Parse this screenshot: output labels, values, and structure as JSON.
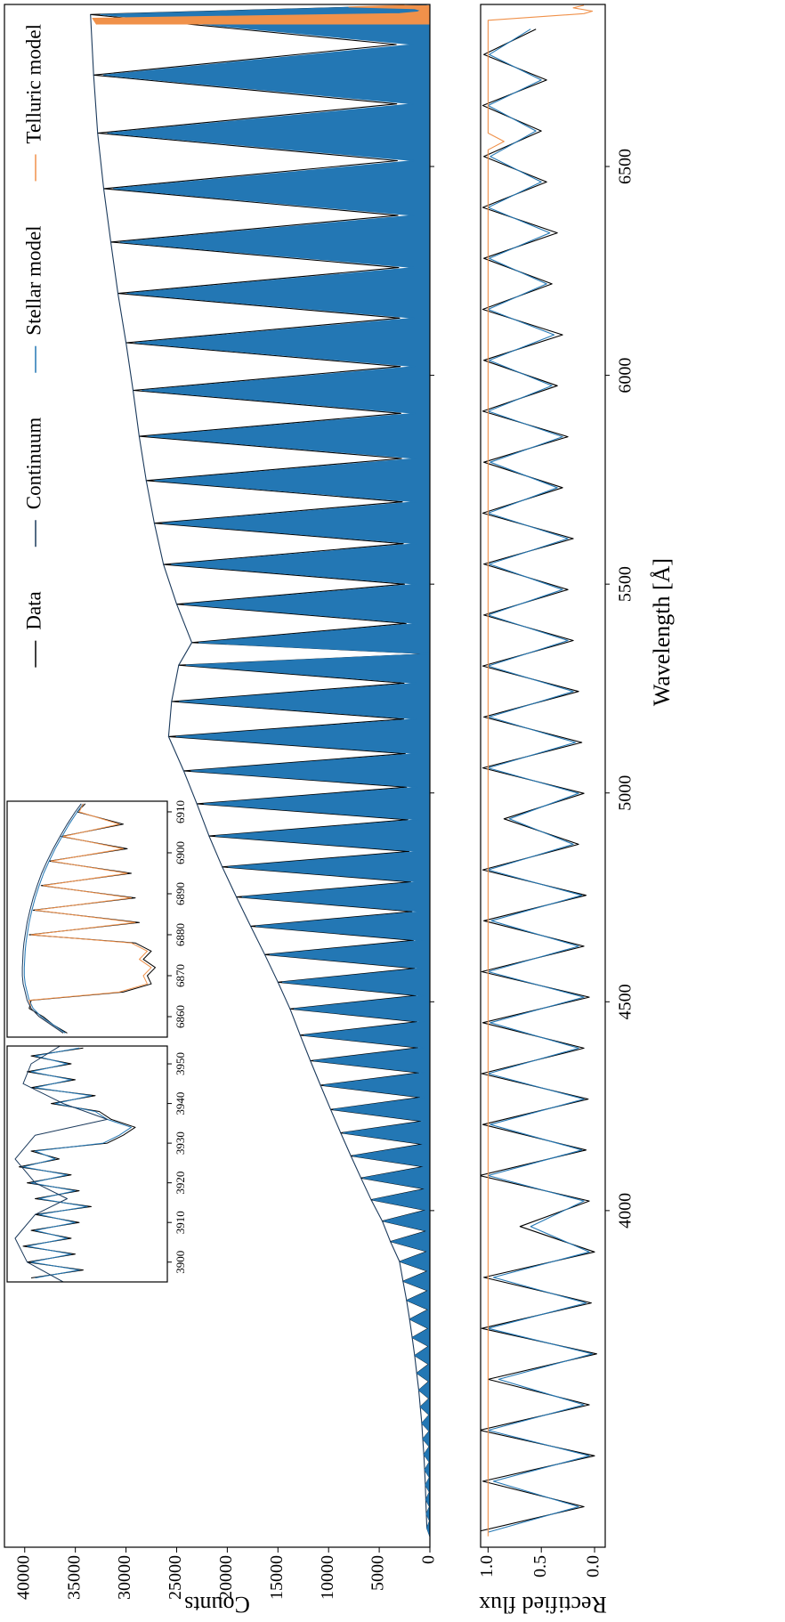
{
  "chart_data": [
    {
      "type": "line",
      "ylabel": "Counts",
      "xlim": [
        3194,
        6888
      ],
      "ylim": [
        0,
        42000
      ],
      "yticks": [
        0,
        5000,
        10000,
        15000,
        20000,
        25000,
        30000,
        35000,
        40000
      ],
      "legend": "upper right",
      "x": [
        3220,
        3240,
        3257,
        3274,
        3291,
        3308,
        3326,
        3343,
        3361,
        3379,
        3398,
        3416,
        3435,
        3453,
        3472,
        3491,
        3511,
        3530,
        3550,
        3570,
        3591,
        3611,
        3632,
        3653,
        3675,
        3696,
        3718,
        3740,
        3763,
        3785,
        3808,
        3831,
        3855,
        3878,
        3902,
        3926,
        3951,
        3975,
        4001,
        4026,
        4052,
        4078,
        4105,
        4131,
        4159,
        4186,
        4214,
        4242,
        4271,
        4300,
        4330,
        4359,
        4390,
        4420,
        4452,
        4483,
        4515,
        4547,
        4580,
        4613,
        4647,
        4681,
        4716,
        4751,
        4787,
        4823,
        4860,
        4897,
        4936,
        4974,
        5014,
        5053,
        5094,
        5135,
        5177,
        5219,
        5263,
        5306,
        5333,
        5360,
        5406,
        5452,
        5500,
        5547,
        5597,
        5646,
        5697,
        5748,
        5801,
        5854,
        5909,
        5964,
        6021,
        6078,
        6137,
        6196,
        6258,
        6319,
        6383,
        6447,
        6514,
        6580,
        6650,
        6719,
        6792,
        6864,
        6886
      ],
      "series": [
        {
          "name": "Data",
          "color": "#000000",
          "values": [
            0,
            300,
            30,
            350,
            35,
            400,
            40,
            450,
            45,
            520,
            52,
            600,
            60,
            700,
            70,
            800,
            80,
            950,
            95,
            1100,
            110,
            1300,
            130,
            1500,
            150,
            1750,
            175,
            2000,
            200,
            2300,
            230,
            2650,
            265,
            3000,
            300,
            3900,
            390,
            4700,
            470,
            5800,
            580,
            6800,
            680,
            7800,
            780,
            8800,
            880,
            9800,
            980,
            10800,
            1080,
            11800,
            1180,
            12800,
            1280,
            13800,
            1380,
            15000,
            1500,
            16300,
            1630,
            17700,
            1770,
            19100,
            1910,
            20500,
            2050,
            21800,
            2180,
            23000,
            2300,
            24300,
            2430,
            25800,
            2580,
            25500,
            2550,
            24800,
            0,
            23500,
            2350,
            25000,
            2500,
            26300,
            2630,
            27200,
            2720,
            28000,
            2800,
            28700,
            2870,
            29300,
            2930,
            30000,
            3000,
            30800,
            3080,
            31500,
            3150,
            32200,
            3220,
            32800,
            3280,
            33200,
            3320,
            33500,
            500
          ]
        },
        {
          "name": "Continuum",
          "color": "#1b3a5c",
          "x": [
            3240,
            3274,
            3308,
            3343,
            3379,
            3416,
            3453,
            3491,
            3530,
            3570,
            3611,
            3653,
            3696,
            3740,
            3785,
            3831,
            3878,
            3926,
            3975,
            4026,
            4078,
            4131,
            4186,
            4242,
            4300,
            4359,
            4420,
            4483,
            4547,
            4613,
            4681,
            4751,
            4823,
            4897,
            4974,
            5053,
            5135,
            5219,
            5306,
            5360,
            5452,
            5547,
            5646,
            5748,
            5854,
            5964,
            6078,
            6196,
            6319,
            6447,
            6580,
            6719,
            6864
          ],
          "values": [
            300,
            350,
            400,
            450,
            520,
            600,
            700,
            800,
            950,
            1100,
            1300,
            1500,
            1750,
            2000,
            2300,
            2650,
            3000,
            3900,
            4700,
            5800,
            6800,
            7800,
            8800,
            9800,
            10800,
            11800,
            12800,
            13800,
            15000,
            16300,
            17700,
            19100,
            20500,
            21800,
            23000,
            24300,
            25800,
            25500,
            24800,
            23500,
            25000,
            26300,
            27200,
            28000,
            28700,
            29300,
            30000,
            30800,
            31500,
            32200,
            32800,
            33200,
            33500
          ]
        },
        {
          "name": "Stellar model",
          "color": "#2377b4",
          "fill": true,
          "values": [
            0,
            290,
            15,
            340,
            18,
            390,
            20,
            440,
            23,
            500,
            26,
            580,
            30,
            680,
            35,
            780,
            40,
            920,
            48,
            1070,
            55,
            1260,
            65,
            1460,
            75,
            1700,
            88,
            1940,
            100,
            2230,
            115,
            2570,
            133,
            2910,
            150,
            3780,
            195,
            4560,
            235,
            5630,
            290,
            6600,
            340,
            7570,
            390,
            8540,
            440,
            9510,
            490,
            10480,
            540,
            11450,
            590,
            12420,
            640,
            13390,
            690,
            14550,
            750,
            15810,
            815,
            17170,
            885,
            18530,
            955,
            19890,
            1025,
            21150,
            1090,
            22310,
            1150,
            23570,
            1215,
            25030,
            1290,
            24740,
            1275,
            24060,
            0,
            22800,
            1175,
            24250,
            1250,
            25510,
            1315,
            26380,
            1360,
            27160,
            1400,
            27840,
            1435,
            28420,
            1465,
            29100,
            1500,
            29880,
            1540,
            30560,
            1575,
            31230,
            1610,
            31820,
            1640,
            32200,
            1660,
            32500,
            300
          ]
        },
        {
          "name": "Telluric model",
          "color": "#f0914a",
          "fill": true,
          "x": [
            6840,
            6855,
            6866,
            6870,
            6874,
            6878,
            6882,
            6886
          ],
          "values": [
            32900,
            33300,
            3000,
            1200,
            900,
            1500,
            8000,
            2500
          ]
        }
      ]
    },
    {
      "type": "line",
      "xlabel": "Wavelength [Å]",
      "ylabel": "Rectified flux",
      "xlim": [
        3194,
        6888
      ],
      "ylim": [
        -0.1,
        1.07
      ],
      "xticks": [
        4000,
        4500,
        5000,
        5500,
        6000,
        6500
      ],
      "yticks": [
        {
          "value": 0,
          "label": "0.0"
        },
        {
          "value": 0.5,
          "label": "0.5"
        },
        {
          "value": 1,
          "label": "1.0"
        }
      ],
      "x": [
        3230,
        3291,
        3352,
        3413,
        3474,
        3535,
        3596,
        3657,
        3718,
        3779,
        3840,
        3901,
        3962,
        4023,
        4084,
        4145,
        4206,
        4267,
        4328,
        4389,
        4450,
        4511,
        4572,
        4633,
        4694,
        4755,
        4816,
        4877,
        4938,
        4999,
        5060,
        5121,
        5182,
        5243,
        5304,
        5365,
        5426,
        5487,
        5548,
        5609,
        5670,
        5731,
        5792,
        5853,
        5914,
        5975,
        6036,
        6097,
        6158,
        6219,
        6280,
        6341,
        6402,
        6463,
        6524,
        6585,
        6646,
        6707,
        6768,
        6829
      ],
      "series": [
        {
          "color": "#000000",
          "values": [
            1.12,
            0.1,
            1.05,
            0.0,
            1.08,
            0.05,
            1.0,
            -0.02,
            1.06,
            0.03,
            1.04,
            0.0,
            0.7,
            0.05,
            1.08,
            0.08,
            1.05,
            0.06,
            1.06,
            0.1,
            1.05,
            0.05,
            1.06,
            0.1,
            1.04,
            0.08,
            1.05,
            0.15,
            0.85,
            0.1,
            1.05,
            0.12,
            1.04,
            0.15,
            1.05,
            0.2,
            1.04,
            0.25,
            1.04,
            0.2,
            1.05,
            0.3,
            1.04,
            0.25,
            1.05,
            0.35,
            1.04,
            0.3,
            1.05,
            0.4,
            1.04,
            0.35,
            1.05,
            0.45,
            1.04,
            0.5,
            1.05,
            0.45,
            1.04,
            0.55
          ]
        },
        {
          "color": "#2377b4",
          "values": [
            1.0,
            0.15,
            0.95,
            0.05,
            1.0,
            0.1,
            0.9,
            0.02,
            1.0,
            0.08,
            0.95,
            0.05,
            0.6,
            0.1,
            1.0,
            0.12,
            0.98,
            0.1,
            1.0,
            0.15,
            0.98,
            0.1,
            1.0,
            0.15,
            0.97,
            0.12,
            1.0,
            0.2,
            0.8,
            0.15,
            1.0,
            0.18,
            0.99,
            0.2,
            1.0,
            0.25,
            1.0,
            0.3,
            0.99,
            0.25,
            1.0,
            0.35,
            0.98,
            0.3,
            1.0,
            0.4,
            0.99,
            0.38,
            1.0,
            0.45,
            0.99,
            0.42,
            1.0,
            0.5,
            0.98,
            0.55,
            1.0,
            0.5,
            0.99,
            0.6
          ]
        },
        {
          "color": "#f0914a",
          "x": [
            3220,
            6540,
            6560,
            6580,
            6850,
            6866,
            6872,
            6880,
            6886
          ],
          "values": [
            1,
            1,
            0.85,
            1,
            1,
            0.1,
            0.02,
            0.2,
            0.1
          ]
        }
      ]
    },
    {
      "type": "line",
      "xlim": [
        3895,
        3954.5
      ],
      "ylim": [
        0,
        4000
      ],
      "xticks": [
        3900,
        3910,
        3920,
        3930,
        3940,
        3950
      ],
      "x": [
        3896,
        3898,
        3900,
        3902,
        3904,
        3906,
        3908,
        3910,
        3912,
        3914,
        3916,
        3918,
        3920,
        3922,
        3924,
        3926,
        3928,
        3930,
        3932,
        3934,
        3936,
        3938,
        3940,
        3942,
        3944,
        3946,
        3948,
        3950,
        3952,
        3954
      ],
      "series": [
        {
          "color": "#000000",
          "values": [
            3400,
            2100,
            3500,
            2300,
            3600,
            2400,
            3400,
            2200,
            3300,
            1900,
            3300,
            2200,
            3500,
            2400,
            3700,
            2700,
            3400,
            1500,
            1100,
            800,
            1400,
            1700,
            2900,
            1800,
            3400,
            2300,
            3500,
            2400,
            3400,
            2100
          ]
        },
        {
          "color": "#2377b4",
          "values": [
            3300,
            2200,
            3400,
            2400,
            3500,
            2500,
            3300,
            2300,
            3200,
            2000,
            3200,
            2300,
            3400,
            2500,
            3600,
            2800,
            3300,
            1600,
            1200,
            900,
            1500,
            1800,
            2800,
            1900,
            3300,
            2400,
            3400,
            2500,
            3300,
            2200
          ]
        },
        {
          "color": "#1b3a5c",
          "x": [
            3895,
            3900,
            3906,
            3912,
            3916,
            3920,
            3926,
            3932,
            3936,
            3940,
            3945,
            3950,
            3955
          ],
          "values": [
            2600,
            3500,
            3800,
            3300,
            2500,
            3300,
            3800,
            3300,
            1500,
            2600,
            3600,
            3400,
            2600
          ]
        }
      ]
    },
    {
      "type": "line",
      "xlim": [
        6855,
        6912.6
      ],
      "ylim": [
        0,
        4000
      ],
      "xticks": [
        6860,
        6870,
        6880,
        6890,
        6900,
        6910
      ],
      "x": [
        6856,
        6858,
        6860,
        6862,
        6864,
        6866,
        6868,
        6870,
        6872,
        6874,
        6876,
        6878,
        6880,
        6883,
        6886,
        6889,
        6892,
        6895,
        6898,
        6901,
        6904,
        6907,
        6910,
        6912
      ],
      "series": [
        {
          "color": "#000000",
          "values": [
            2500,
            2850,
            3100,
            3450,
            3400,
            1100,
            400,
            500,
            300,
            600,
            400,
            800,
            3450,
            700,
            3350,
            800,
            3150,
            900,
            2950,
            1000,
            2650,
            1100,
            2250,
            2050
          ]
        },
        {
          "color": "#2377b4",
          "values": [
            2550,
            2850,
            3150,
            3350,
            3450,
            3500,
            3550,
            3570,
            3570,
            3560,
            3550,
            3530,
            3500,
            3450,
            3380,
            3300,
            3200,
            3090,
            2950,
            2800,
            2630,
            2450,
            2250,
            2100
          ]
        },
        {
          "color": "#f0914a",
          "values": [
            2600,
            2900,
            3200,
            3400,
            3450,
            1200,
            500,
            600,
            400,
            700,
            500,
            900,
            3400,
            800,
            3300,
            900,
            3100,
            1000,
            2900,
            1100,
            2600,
            1200,
            2200,
            2100
          ]
        },
        {
          "color": "#1b3a5c",
          "values": [
            2600,
            2900,
            3200,
            3400,
            3500,
            3550,
            3600,
            3620,
            3620,
            3610,
            3600,
            3580,
            3550,
            3500,
            3430,
            3350,
            3250,
            3140,
            3000,
            2850,
            2680,
            2500,
            2300,
            2150
          ]
        }
      ]
    }
  ]
}
